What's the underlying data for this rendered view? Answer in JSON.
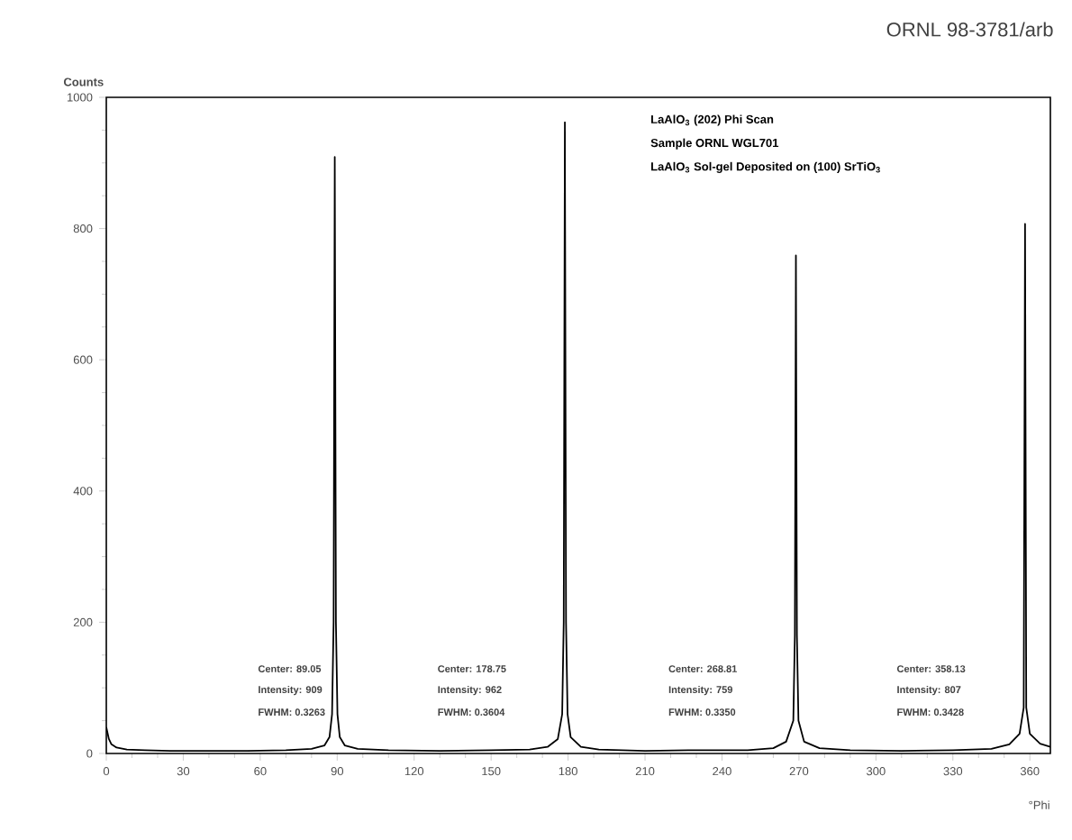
{
  "chart_data": {
    "type": "line",
    "xlabel": "°Phi",
    "ylabel": "Counts",
    "xlim": [
      0,
      368
    ],
    "xticks": [
      0,
      30,
      60,
      90,
      120,
      150,
      180,
      210,
      240,
      270,
      300,
      330,
      360
    ],
    "ylim": [
      0,
      1000
    ],
    "yticks": [
      0,
      200,
      400,
      600,
      800,
      1000
    ],
    "marker": "none",
    "line_style": "solid",
    "series": [
      {
        "color": "#000000",
        "x": [
          0,
          1,
          2,
          4,
          8,
          15,
          25,
          40,
          55,
          70,
          80,
          85,
          87,
          88,
          88.6,
          89.05,
          89.5,
          90.1,
          91,
          93,
          98,
          110,
          130,
          150,
          165,
          172,
          176,
          177.7,
          178.3,
          178.75,
          179.2,
          179.8,
          181,
          185,
          192,
          210,
          230,
          250,
          260,
          265,
          267.8,
          268.4,
          268.81,
          269.2,
          269.8,
          272,
          278,
          290,
          310,
          330,
          345,
          352,
          356,
          357.6,
          358.13,
          358.6,
          360,
          364,
          368
        ],
        "values": [
          40,
          22,
          14,
          9,
          6,
          5,
          4,
          4,
          4,
          5,
          7,
          12,
          25,
          60,
          200,
          909,
          200,
          60,
          25,
          12,
          7,
          5,
          4,
          5,
          6,
          10,
          22,
          60,
          200,
          962,
          200,
          60,
          25,
          10,
          6,
          4,
          5,
          5,
          8,
          18,
          50,
          180,
          759,
          180,
          50,
          18,
          8,
          5,
          4,
          5,
          7,
          14,
          30,
          70,
          807,
          70,
          30,
          15,
          10
        ]
      }
    ],
    "annotations": [
      "LaAlO$_{3}$ (202) Phi Scan",
      "Sample ORNL WGL701",
      "LaAlO$_{3}$ Sol-gel Deposited on (100) SrTiO$_{3}$",
      "Center: 89.05",
      "Intensity: 909",
      "FWHM: 0.3263",
      "Center: 178.75",
      "Intensity: 962",
      "FWHM: 0.3604",
      "Center: 268.81",
      "Intensity: 759",
      "FWHM: 0.3350",
      "Center: 358.13",
      "Intensity: 807",
      "FWHM: 0.3428",
      "ORNL 98-3781/arb"
    ]
  }
}
